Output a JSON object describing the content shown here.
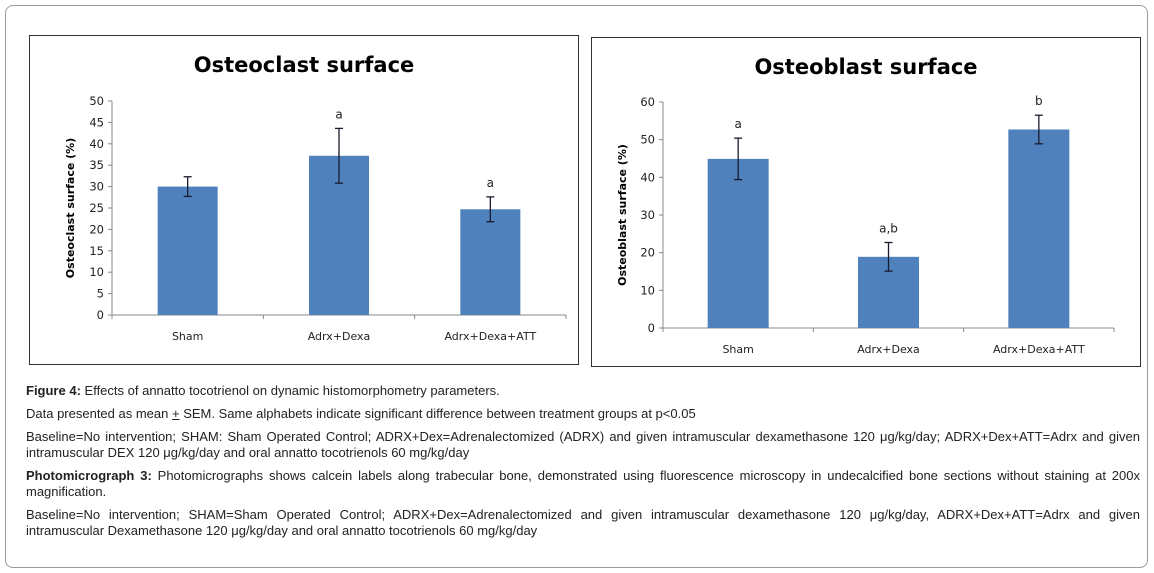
{
  "chart_data": [
    {
      "type": "bar",
      "title": "Osteoclast surface",
      "xlabel": "",
      "ylabel": "Osteoclast surface  (%)",
      "categories": [
        "Sham",
        "Adrx+Dexa",
        "Adrx+Dexa+ATT"
      ],
      "values": [
        30.0,
        37.2,
        24.7
      ],
      "error": [
        2.3,
        6.4,
        2.9
      ],
      "annotations": [
        "",
        "a",
        "a"
      ],
      "ylim": [
        0,
        50
      ],
      "yticks": [
        0,
        5,
        10,
        15,
        20,
        25,
        30,
        35,
        40,
        45,
        50
      ],
      "grid": false,
      "legend": "none",
      "color": "#4f81bd"
    },
    {
      "type": "bar",
      "title": "Osteoblast surface",
      "xlabel": "",
      "ylabel": "Osteoblast surface (%)",
      "categories": [
        "Sham",
        "Adrx+Dexa",
        "Adrx+Dexa+ATT"
      ],
      "values": [
        44.9,
        18.9,
        52.7
      ],
      "error": [
        5.5,
        3.8,
        3.8
      ],
      "annotations": [
        "a",
        "a,b",
        "b"
      ],
      "ylim": [
        0,
        60
      ],
      "yticks": [
        0,
        10,
        20,
        30,
        40,
        50,
        60
      ],
      "grid": false,
      "legend": "none",
      "color": "#4f81bd"
    }
  ],
  "caption": {
    "figure_label": "Figure 4:",
    "figure_text": " Effects of annatto tocotrienol on dynamic histomorphometry parameters.",
    "data_note_pre": "Data presented as mean ",
    "data_note_pm": "+",
    "data_note_post": " SEM. Same alphabets indicate significant difference between treatment groups at p<0.05",
    "baseline_1": "Baseline=No intervention; SHAM: Sham Operated Control; ADRX+Dex=Adrenalectomized (ADRX) and given intramuscular dexamethasone 120 μg/kg/day; ADRX+Dex+ATT=Adrx and given intramuscular DEX 120 μg/kg/day and oral annatto tocotrienols 60 mg/kg/day",
    "photo_label": "Photomicrograph 3:",
    "photo_text": " Photomicrographs shows calcein labels along trabecular bone, demonstrated using fluorescence microscopy in undecalcified bone sections without staining at 200x magnification.",
    "baseline_2": "Baseline=No intervention; SHAM=Sham Operated Control; ADRX+Dex=Adrenalectomized and given intramuscular dexamethasone 120 μg/kg/day, ADRX+Dex+ATT=Adrx and given intramuscular Dexamethasone 120 μg/kg/day and oral annatto tocotrienols 60 mg/kg/day"
  }
}
